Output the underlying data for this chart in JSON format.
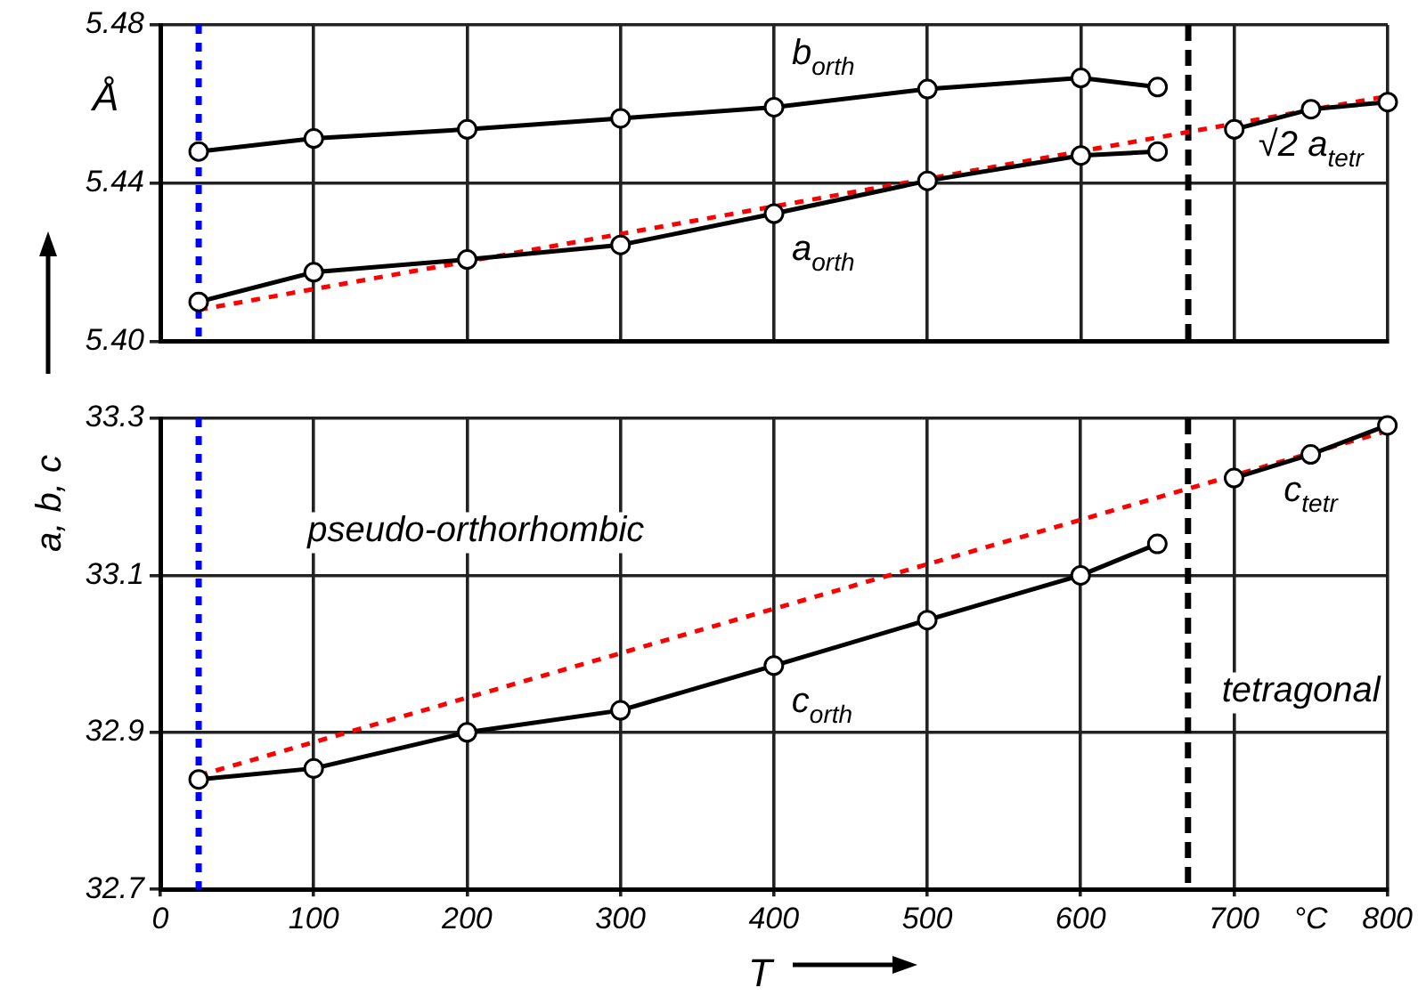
{
  "chart_data": [
    {
      "type": "line",
      "ylabel": "Å",
      "xlim": [
        0,
        800
      ],
      "xticks": [
        0,
        100,
        200,
        300,
        400,
        500,
        600,
        700,
        800
      ],
      "ylim": [
        5.4,
        5.48
      ],
      "yticks": [
        {
          "value": 5.4,
          "label": "5.40"
        },
        {
          "value": 5.44,
          "label": "5.44"
        },
        {
          "value": 5.48,
          "label": "5.48"
        }
      ],
      "tick_labels": "y",
      "grid": true,
      "marker": "circle",
      "series": [
        {
          "name": "b$_{orth}$",
          "color": "#000000",
          "x": [
            25,
            100,
            200,
            300,
            400,
            500,
            600,
            650
          ],
          "values": [
            5.448,
            5.4513,
            5.4536,
            5.4564,
            5.4592,
            5.4638,
            5.4666,
            5.4643
          ]
        },
        {
          "name": "a$_{orth}$",
          "color": "#000000",
          "x": [
            25,
            100,
            200,
            300,
            400,
            500,
            600,
            650
          ],
          "values": [
            5.41,
            5.4175,
            5.4207,
            5.4244,
            5.4323,
            5.4406,
            5.447,
            5.448
          ]
        },
        {
          "name": "√2 a$_{tetr}$",
          "color": "#000000",
          "x": [
            700,
            750,
            800
          ],
          "values": [
            5.4536,
            5.4587,
            5.4605
          ]
        },
        {
          "type": "line",
          "color": "#ff0000",
          "line_style": "dotted",
          "marker": "none",
          "x": [
            25,
            800
          ],
          "values": [
            5.408,
            5.462
          ]
        }
      ],
      "ref_lines": [
        {
          "axis": "x",
          "value": 25,
          "color": "#0000ff",
          "line_style": "dotted"
        },
        {
          "axis": "x",
          "value": 670,
          "color": "#000000",
          "line_style": "dashed"
        }
      ]
    },
    {
      "type": "line",
      "xlabel": "T",
      "ylabel": "a, b, c",
      "xlim": [
        0,
        800
      ],
      "xticks": [
        0,
        100,
        200,
        300,
        400,
        500,
        600,
        700,
        {
          "value": 750,
          "label": "°C"
        },
        800
      ],
      "ylim": [
        32.7,
        33.3
      ],
      "yticks": [
        32.7,
        32.9,
        33.1,
        33.3
      ],
      "grid": true,
      "marker": "circle",
      "series": [
        {
          "name": "c$_{orth}$",
          "color": "#000000",
          "x": [
            25,
            100,
            200,
            300,
            400,
            500,
            600,
            650
          ],
          "values": [
            32.84,
            32.854,
            32.9,
            32.928,
            32.985,
            33.043,
            33.1,
            33.14
          ]
        },
        {
          "name": "c$_{tetr}$",
          "color": "#000000",
          "x": [
            700,
            750,
            800
          ],
          "values": [
            33.224,
            33.254,
            33.291
          ]
        },
        {
          "type": "line",
          "color": "#ff0000",
          "line_style": "dotted",
          "marker": "none",
          "x": [
            25,
            800
          ],
          "values": [
            32.845,
            33.284
          ]
        }
      ],
      "ref_lines": [
        {
          "axis": "x",
          "value": 25,
          "color": "#0000ff",
          "line_style": "dotted"
        },
        {
          "axis": "x",
          "value": 670,
          "color": "#000000",
          "line_style": "dashed"
        }
      ],
      "annotations": [
        "pseudo-orthorhombic",
        "tetragonal"
      ]
    }
  ]
}
